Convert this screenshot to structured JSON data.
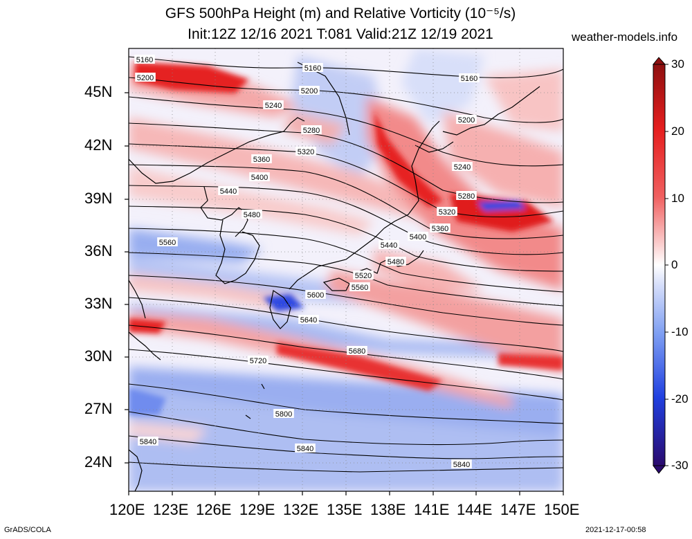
{
  "title": {
    "line1": "GFS 500hPa Height (m) and Relative Vorticity (10⁻⁵/s)",
    "line2": "Init:12Z 12/16 2021 T:081 Valid:21Z 12/19 2021"
  },
  "site": "weather-models.info",
  "footer": {
    "left": "GrADS/COLA",
    "right": "2021-12-17-00:58"
  },
  "map": {
    "lat_labels": [
      "45N",
      "42N",
      "39N",
      "36N",
      "33N",
      "30N",
      "27N",
      "24N"
    ],
    "lon_labels": [
      "120E",
      "123E",
      "126E",
      "129E",
      "132E",
      "135E",
      "138E",
      "141E",
      "144E",
      "147E",
      "150E"
    ],
    "contour_labels": [
      "5160",
      "5160",
      "5160",
      "5200",
      "5200",
      "5200",
      "5240",
      "5240",
      "5280",
      "5280",
      "5320",
      "5320",
      "5360",
      "5360",
      "5400",
      "5400",
      "5440",
      "5440",
      "5480",
      "5480",
      "5520",
      "5560",
      "5560",
      "5600",
      "5640",
      "5680",
      "5720",
      "5800",
      "5840",
      "5840",
      "5840"
    ]
  },
  "colorbar": {
    "ticks": [
      "30",
      "20",
      "10",
      "0",
      "-10",
      "-20",
      "-30"
    ],
    "colors": [
      "#2a0a6e",
      "#1a1ab8",
      "#2040e0",
      "#4a70ee",
      "#7f9ff2",
      "#b0c4f6",
      "#dfe6fb",
      "#ffffff",
      "#fbe0e0",
      "#f7b4b4",
      "#f28080",
      "#ec4a4a",
      "#e51e1e",
      "#c81212",
      "#8e1010"
    ]
  }
}
